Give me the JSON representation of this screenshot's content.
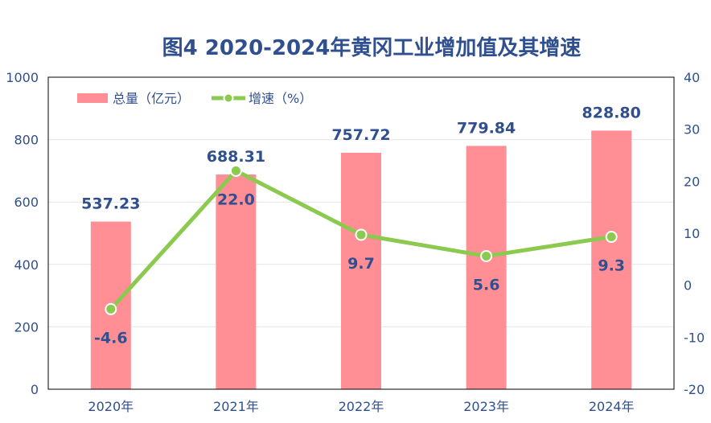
{
  "chart_data": {
    "type": "bar",
    "title": "图4  2020-2024年黄冈工业增加值及其增速",
    "categories": [
      "2020年",
      "2021年",
      "2022年",
      "2023年",
      "2024年"
    ],
    "series": [
      {
        "name": "总量（亿元）",
        "type": "bar",
        "axis": "left",
        "values": [
          537.23,
          688.31,
          757.72,
          779.84,
          828.8
        ],
        "labels": [
          "537.23",
          "688.31",
          "757.72",
          "779.84",
          "828.80"
        ]
      },
      {
        "name": "增速（%）",
        "type": "line",
        "axis": "right",
        "values": [
          -4.6,
          22.0,
          9.7,
          5.6,
          9.3
        ],
        "labels": [
          "-4.6",
          "22.0",
          "9.7",
          "5.6",
          "9.3"
        ]
      }
    ],
    "ylim_left": [
      0,
      1000
    ],
    "yticks_left": [
      "0",
      "200",
      "400",
      "600",
      "800",
      "1000"
    ],
    "ylim_right": [
      -20,
      40
    ],
    "yticks_right": [
      "-20",
      "-10",
      "0",
      "10",
      "20",
      "30",
      "40"
    ],
    "legend_position": "top-left",
    "grid": true,
    "colors": {
      "bar": "#ff8f94",
      "line": "#8bc94f",
      "text": "#2f4f8f"
    }
  }
}
